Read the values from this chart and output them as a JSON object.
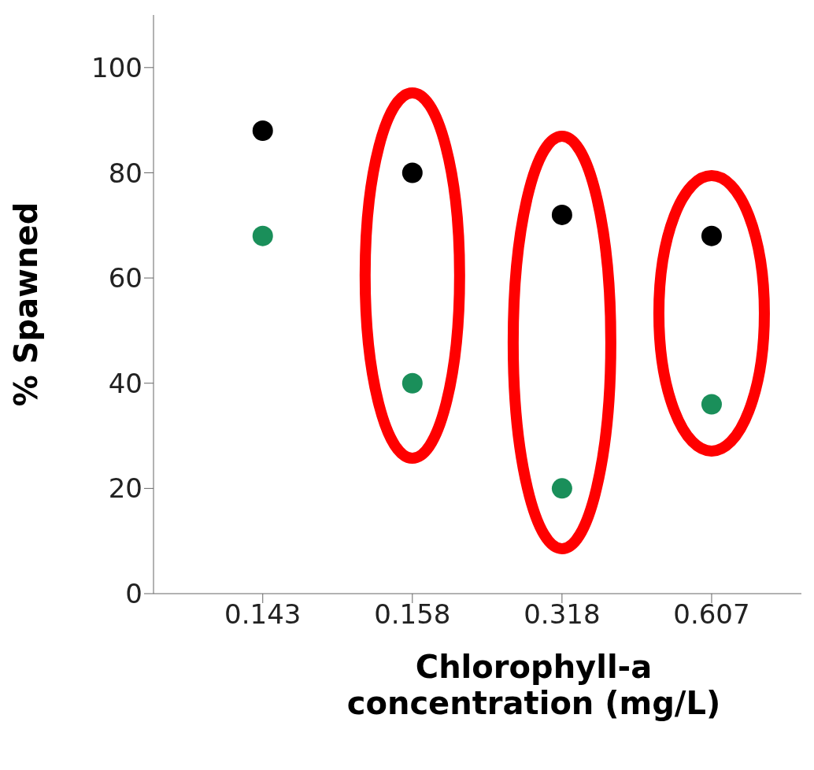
{
  "chart_data": {
    "type": "scatter",
    "xlabel": "Chlorophyll-a concentration (mg/L)",
    "ylabel": "% Spawned",
    "categories": [
      "0.143",
      "0.158",
      "0.318",
      "0.607"
    ],
    "series": [
      {
        "color": "#000000",
        "values": [
          88,
          80,
          72,
          68
        ]
      },
      {
        "color": "#1a8f5a",
        "values": [
          68,
          40,
          20,
          36
        ]
      }
    ],
    "ylim": [
      0,
      110
    ],
    "yticks": [
      0,
      20,
      40,
      60,
      80,
      100
    ],
    "grid": false,
    "legend": false,
    "marker": "circle"
  }
}
